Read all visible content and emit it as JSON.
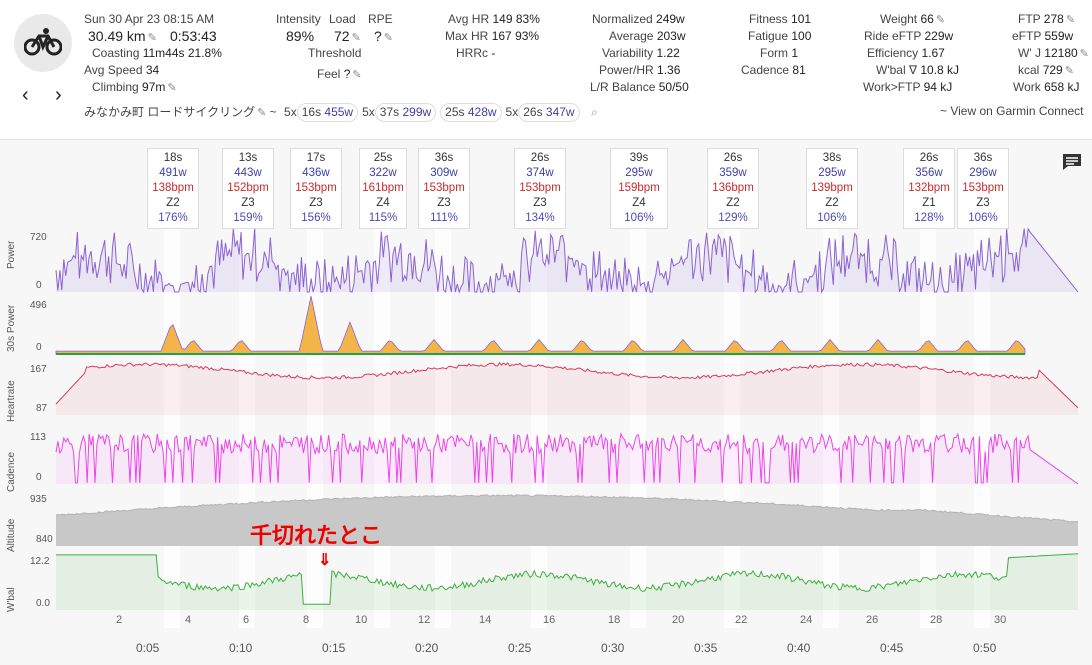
{
  "header": {
    "date": "Sun 30 Apr 23",
    "time": "08:15 AM",
    "distance": "30.49 km",
    "duration": "0:53:43",
    "coasting_label": "Coasting",
    "coasting_val": "11m44s",
    "coasting_pct": "21.8%",
    "avg_speed_label": "Avg Speed",
    "avg_speed_val": "34",
    "climbing_label": "Climbing",
    "climbing_val": "97m",
    "intensity_label": "Intensity",
    "intensity_val": "89%",
    "load_label": "Load",
    "load_val": "72",
    "rpe_label": "RPE",
    "rpe_val": "?",
    "threshold_label": "Threshold",
    "feel_label": "Feel",
    "feel_val": "?",
    "avg_hr_label": "Avg HR",
    "avg_hr_val": "149",
    "avg_hr_pct": "83%",
    "max_hr_label": "Max HR",
    "max_hr_val": "167",
    "max_hr_pct": "93%",
    "hrrc_label": "HRRc",
    "hrrc_val": "-",
    "normalized_label": "Normalized",
    "normalized_val": "249w",
    "average_label": "Average",
    "average_val": "203w",
    "variability_label": "Variability",
    "variability_val": "1.22",
    "powerhr_label": "Power/HR",
    "powerhr_val": "1.36",
    "lr_label": "L/R Balance",
    "lr_val": "50/50",
    "fitness_label": "Fitness",
    "fitness_val": "101",
    "fatigue_label": "Fatigue",
    "fatigue_val": "100",
    "form_label": "Form",
    "form_val": "1",
    "cadence_label": "Cadence",
    "cadence_val": "81",
    "weight_label": "Weight",
    "weight_val": "66",
    "ride_eftp_label": "Ride eFTP",
    "ride_eftp_val": "229w",
    "efficiency_label": "Efficiency",
    "efficiency_val": "1.67",
    "wbal_label": "W'bal ∇",
    "wbal_val": "10.8 kJ",
    "workftp_label": "Work>FTP",
    "workftp_val": "94 kJ",
    "ftp_label": "FTP",
    "ftp_val": "278",
    "eftp_label": "eFTP",
    "eftp_val": "559w",
    "wj_label": "W' J",
    "wj_val": "12180",
    "kcal_label": "kcal",
    "kcal_val": "729",
    "work_label": "Work",
    "work_val": "658 kJ",
    "activity_name": "みなかみ町 ロードサイクリング",
    "tilde": "~",
    "reps": [
      {
        "count": "5x",
        "dur": "16s",
        "watts": "455w"
      },
      {
        "count": "5x",
        "dur": "37s",
        "watts": "299w"
      },
      {
        "count": "",
        "dur": "25s",
        "watts": "428w"
      },
      {
        "count": "5x",
        "dur": "26s",
        "watts": "347w"
      }
    ],
    "garmin_link": "~ View on Garmin Connect"
  },
  "intervals": [
    {
      "dur": "18s",
      "w": "491w",
      "hr": "138bpm",
      "z": "Z2",
      "p": "176%"
    },
    {
      "dur": "13s",
      "w": "443w",
      "hr": "152bpm",
      "z": "Z3",
      "p": "159%"
    },
    {
      "dur": "17s",
      "w": "436w",
      "hr": "153bpm",
      "z": "Z3",
      "p": "156%"
    },
    {
      "dur": "25s",
      "w": "322w",
      "hr": "161bpm",
      "z": "Z4",
      "p": "115%"
    },
    {
      "dur": "36s",
      "w": "309w",
      "hr": "153bpm",
      "z": "Z3",
      "p": "111%"
    },
    {
      "dur": "26s",
      "w": "374w",
      "hr": "153bpm",
      "z": "Z3",
      "p": "134%"
    },
    {
      "dur": "39s",
      "w": "295w",
      "hr": "159bpm",
      "z": "Z4",
      "p": "106%"
    },
    {
      "dur": "26s",
      "w": "359w",
      "hr": "136bpm",
      "z": "Z2",
      "p": "129%"
    },
    {
      "dur": "38s",
      "w": "295w",
      "hr": "139bpm",
      "z": "Z2",
      "p": "106%"
    },
    {
      "dur": "26s",
      "w": "356w",
      "hr": "132bpm",
      "z": "Z1",
      "p": "128%"
    },
    {
      "dur": "36s",
      "w": "296w",
      "hr": "153bpm",
      "z": "Z3",
      "p": "106%"
    }
  ],
  "charts": {
    "power": {
      "label": "Power",
      "top": "720",
      "bottom": "0"
    },
    "power30": {
      "label": "30s Power",
      "top": "496",
      "bottom": "0"
    },
    "hr": {
      "label": "Heartrate",
      "top": "167",
      "bottom": "87"
    },
    "cadence": {
      "label": "Cadence",
      "top": "113",
      "bottom": "0"
    },
    "altitude": {
      "label": "Altitude",
      "top": "935",
      "bottom": "840"
    },
    "wbal": {
      "label": "W'bal",
      "top": "12.2",
      "bottom": "0.0"
    }
  },
  "laps": [
    "2",
    "4",
    "6",
    "8",
    "10",
    "12",
    "14",
    "16",
    "18",
    "20",
    "22",
    "24",
    "26",
    "28",
    "30"
  ],
  "xticks": [
    "0:05",
    "0:10",
    "0:15",
    "0:20",
    "0:25",
    "0:30",
    "0:35",
    "0:40",
    "0:45",
    "0:50"
  ],
  "annotation": "千切れたとこ",
  "annotation_arrow": "⇓",
  "colors": {
    "power": "#8a63d2",
    "hr": "#d93a5a",
    "cadence": "#ee44ee",
    "altitude": "#b3b3b3",
    "wbal": "#3fae3f"
  }
}
